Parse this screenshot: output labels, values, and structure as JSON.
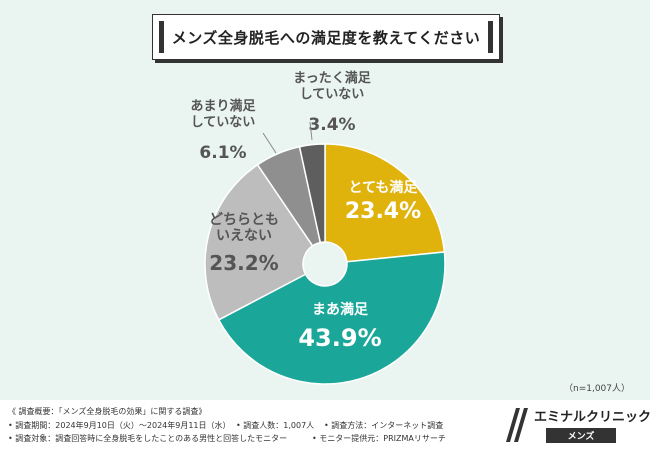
{
  "title": "メンズ全身脱毛への満足度を教えてください",
  "chart_data": {
    "type": "pie",
    "donut": true,
    "slices": [
      {
        "label_lines": [
          "とても満足"
        ],
        "value": 23.4,
        "value_text": "23.4%",
        "color": "#e0b20c",
        "label_color": "#ffffff"
      },
      {
        "label_lines": [
          "まあ満足"
        ],
        "value": 43.9,
        "value_text": "43.9%",
        "color": "#1aa79a",
        "label_color": "#ffffff"
      },
      {
        "label_lines": [
          "どちらとも",
          "いえない"
        ],
        "value": 23.2,
        "value_text": "23.2%",
        "color": "#bdbdbd",
        "label_color": "#555555"
      },
      {
        "label_lines": [
          "あまり満足",
          "していない"
        ],
        "value": 6.1,
        "value_text": "6.1%",
        "color": "#8f8f8f",
        "label_color": "#555555"
      },
      {
        "label_lines": [
          "まったく満足",
          "していない"
        ],
        "value": 3.4,
        "value_text": "3.4%",
        "color": "#5e5e5e",
        "label_color": "#555555"
      }
    ]
  },
  "sample_note": "（n=1,007人）",
  "footer": {
    "line1": "《 調査概要：「メンズ全身脱毛の効果」に関する調査》",
    "period": "• 調査期間：2024年9月10日（火）～2024年9月11日（水）",
    "count": "• 調査人数：1,007人",
    "method": "• 調査方法：インターネット調査",
    "target": "• 調査対象：調査回答時に全身脱毛をしたことのある男性と回答したモニター",
    "provider": "• モニター提供元：PRIZMAリサーチ"
  },
  "logo": {
    "name": "エミナルクリニック",
    "sub": "メンズ"
  }
}
